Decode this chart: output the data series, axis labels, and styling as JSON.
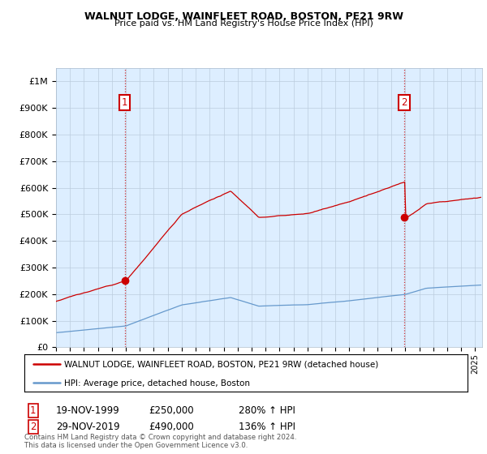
{
  "title1": "WALNUT LODGE, WAINFLEET ROAD, BOSTON, PE21 9RW",
  "title2": "Price paid vs. HM Land Registry's House Price Index (HPI)",
  "xlim": [
    1995.0,
    2025.5
  ],
  "ylim": [
    0,
    1050000
  ],
  "yticks": [
    0,
    100000,
    200000,
    300000,
    400000,
    500000,
    600000,
    700000,
    800000,
    900000,
    1000000
  ],
  "ytick_labels": [
    "£0",
    "£100K",
    "£200K",
    "£300K",
    "£400K",
    "£500K",
    "£600K",
    "£700K",
    "£800K",
    "£900K",
    "£1M"
  ],
  "sale1_x": 1999.92,
  "sale1_y": 250000,
  "sale1_label": "1",
  "sale2_x": 2019.92,
  "sale2_y": 490000,
  "sale2_label": "2",
  "red_color": "#cc0000",
  "blue_color": "#6699cc",
  "chart_bg": "#ddeeff",
  "legend_line1": "WALNUT LODGE, WAINFLEET ROAD, BOSTON, PE21 9RW (detached house)",
  "legend_line2": "HPI: Average price, detached house, Boston",
  "table_row1": [
    "1",
    "19-NOV-1999",
    "£250,000",
    "280% ↑ HPI"
  ],
  "table_row2": [
    "2",
    "29-NOV-2019",
    "£490,000",
    "136% ↑ HPI"
  ],
  "footer": "Contains HM Land Registry data © Crown copyright and database right 2024.\nThis data is licensed under the Open Government Licence v3.0.",
  "background_color": "#ffffff",
  "grid_color": "#bbccdd"
}
